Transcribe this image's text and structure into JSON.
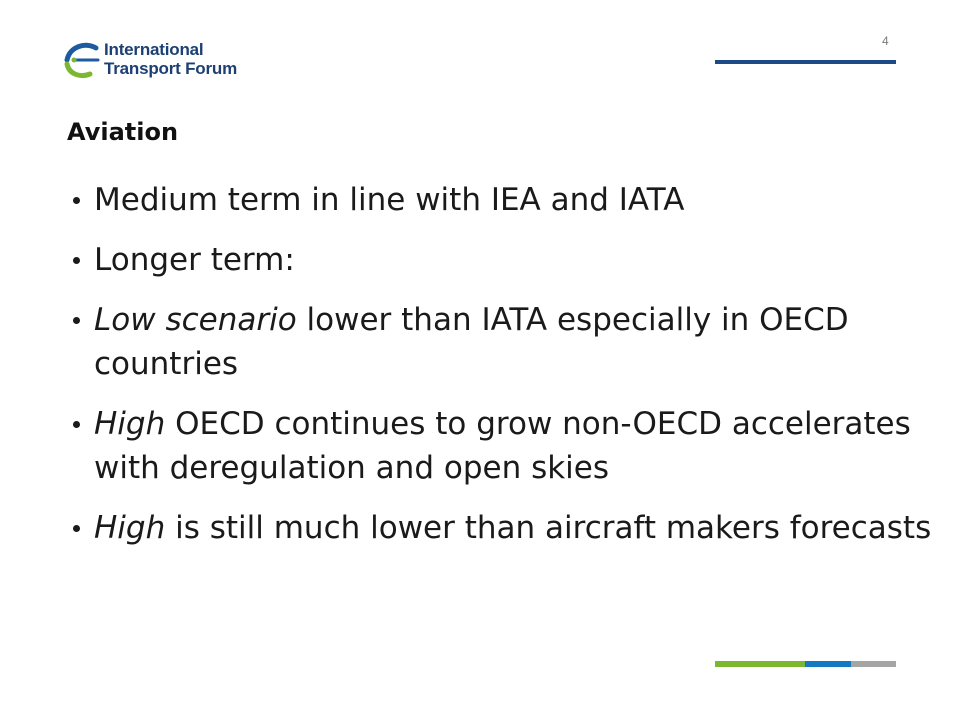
{
  "header": {
    "logo_line1": "International",
    "logo_line2": "Transport Forum",
    "page_number": "4"
  },
  "slide": {
    "title": "Aviation",
    "bullets": [
      {
        "em": "",
        "text": "Medium term in line with IEA and IATA"
      },
      {
        "em": "",
        "text": "Longer term:"
      },
      {
        "em": "Low scenario",
        "text": " lower than IATA especially in OECD countries"
      },
      {
        "em": "High",
        "text": " OECD continues to grow non-OECD accelerates with deregulation and open skies"
      },
      {
        "em": "High",
        "text": " is still much lower than aircraft makers forecasts"
      }
    ]
  },
  "colors": {
    "brand_navy": "#1d3f73",
    "accent_green": "#7cb82f",
    "accent_blue": "#1479c3",
    "accent_gray": "#a5a5a5"
  }
}
